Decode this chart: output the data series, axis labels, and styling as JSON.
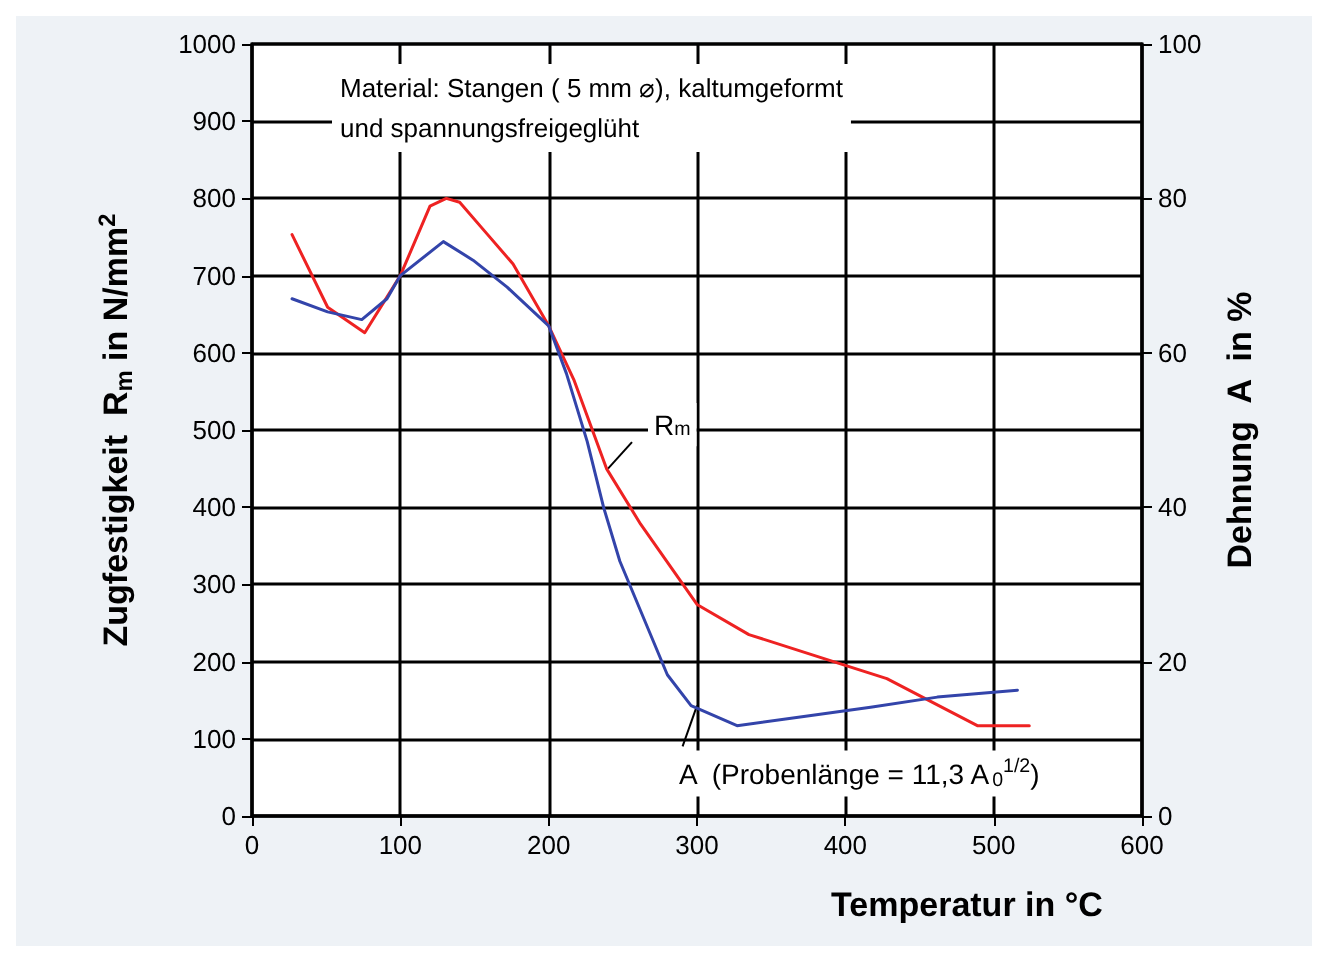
{
  "chart_data": {
    "type": "line",
    "xlabel": "Temperatur in °C",
    "ylabel": "Zugfestigkeit  R$_{m}$ in N/mm$^{2}$",
    "y2label": "Dehnung  A  in %",
    "series": [
      {
        "color": "#ee2222",
        "x": [
          27,
          51,
          76,
          100,
          120,
          131,
          140,
          158,
          176,
          200,
          217,
          239,
          262,
          300,
          335,
          392,
          428,
          463,
          489,
          524
        ],
        "values": [
          753,
          659,
          626,
          700,
          790,
          800,
          795,
          755,
          715,
          635,
          565,
          450,
          378,
          274,
          235,
          200,
          178,
          143,
          117,
          117
        ]
      },
      {
        "color": "#3344aa",
        "axis": "y2",
        "x": [
          27,
          51,
          74,
          91,
          100,
          129,
          149,
          172,
          200,
          212,
          226,
          237,
          248,
          280,
          296,
          327,
          372,
          417,
          462,
          516
        ],
        "values": [
          67,
          65.3,
          64.3,
          67,
          70,
          74.4,
          72,
          68.5,
          63.5,
          57.3,
          48.5,
          40,
          33,
          18.3,
          14.3,
          11.7,
          12.9,
          14.1,
          15.4,
          16.3
        ]
      }
    ],
    "annotations": [
      "Material: Stangen ( 5 mm ⌀), kaltumgeformt\nund spannungsfreigeglüht",
      {
        "text": "R$_{m}$",
        "x": 240,
        "y": 450
      },
      {
        "text": "A  (Probenlänge = 11,3 A$_{0}$$^{1/2}$)",
        "x": 300,
        "y": 143
      }
    ],
    "xlim": [
      0,
      600
    ],
    "xticks": [
      0,
      100,
      200,
      300,
      400,
      500,
      600
    ],
    "ylim": [
      0,
      1000
    ],
    "yticks": [
      0,
      100,
      200,
      300,
      400,
      500,
      600,
      700,
      800,
      900,
      1000
    ],
    "y2lim": [
      0,
      100
    ],
    "y2ticks": [
      0,
      20,
      40,
      60,
      80,
      100
    ],
    "grid": true,
    "marker": "none",
    "line_style": "solid"
  }
}
